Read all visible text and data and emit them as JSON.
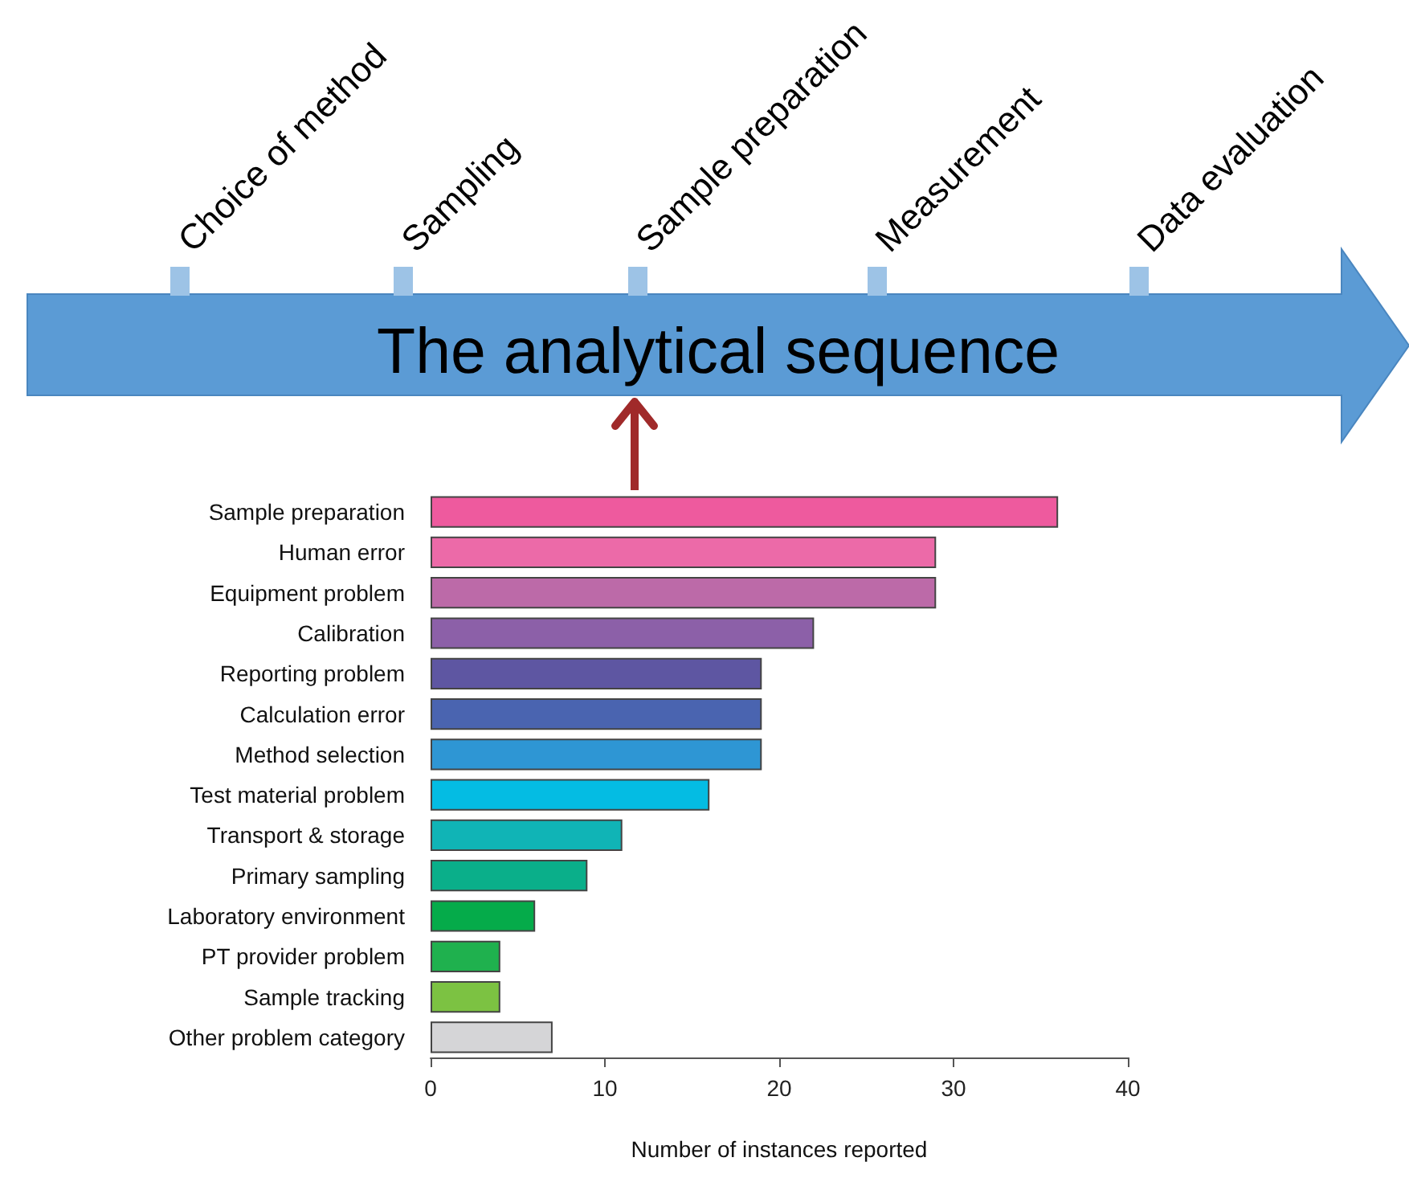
{
  "chart_data": {
    "type": "bar",
    "orientation": "horizontal",
    "xlabel": "Number of instances reported",
    "categories": [
      "Sample preparation",
      "Human error",
      "Equipment problem",
      "Calibration",
      "Reporting problem",
      "Calculation error",
      "Method selection",
      "Test material problem",
      "Transport & storage",
      "Primary sampling",
      "Laboratory environment",
      "PT provider problem",
      "Sample tracking",
      "Other problem category"
    ],
    "values": [
      36,
      29,
      29,
      22,
      19,
      19,
      19,
      16,
      11,
      9,
      6,
      4,
      4,
      7
    ],
    "colors": [
      "#ee5a9e",
      "#ec6aa8",
      "#bc6aa8",
      "#8c60a8",
      "#5e56a2",
      "#4a64b0",
      "#2e96d4",
      "#04bce3",
      "#10b4b6",
      "#0aaf8a",
      "#05ab4a",
      "#1fb14e",
      "#7cc242",
      "#d5d5d7"
    ],
    "xlim": [
      0,
      40
    ],
    "xticks": [
      0,
      10,
      20,
      30,
      40
    ],
    "grid": false,
    "annotations": [
      "The analytical sequence",
      "Choice of method",
      "Sampling",
      "Sample preparation",
      "Measurement",
      "Data evaluation"
    ]
  }
}
